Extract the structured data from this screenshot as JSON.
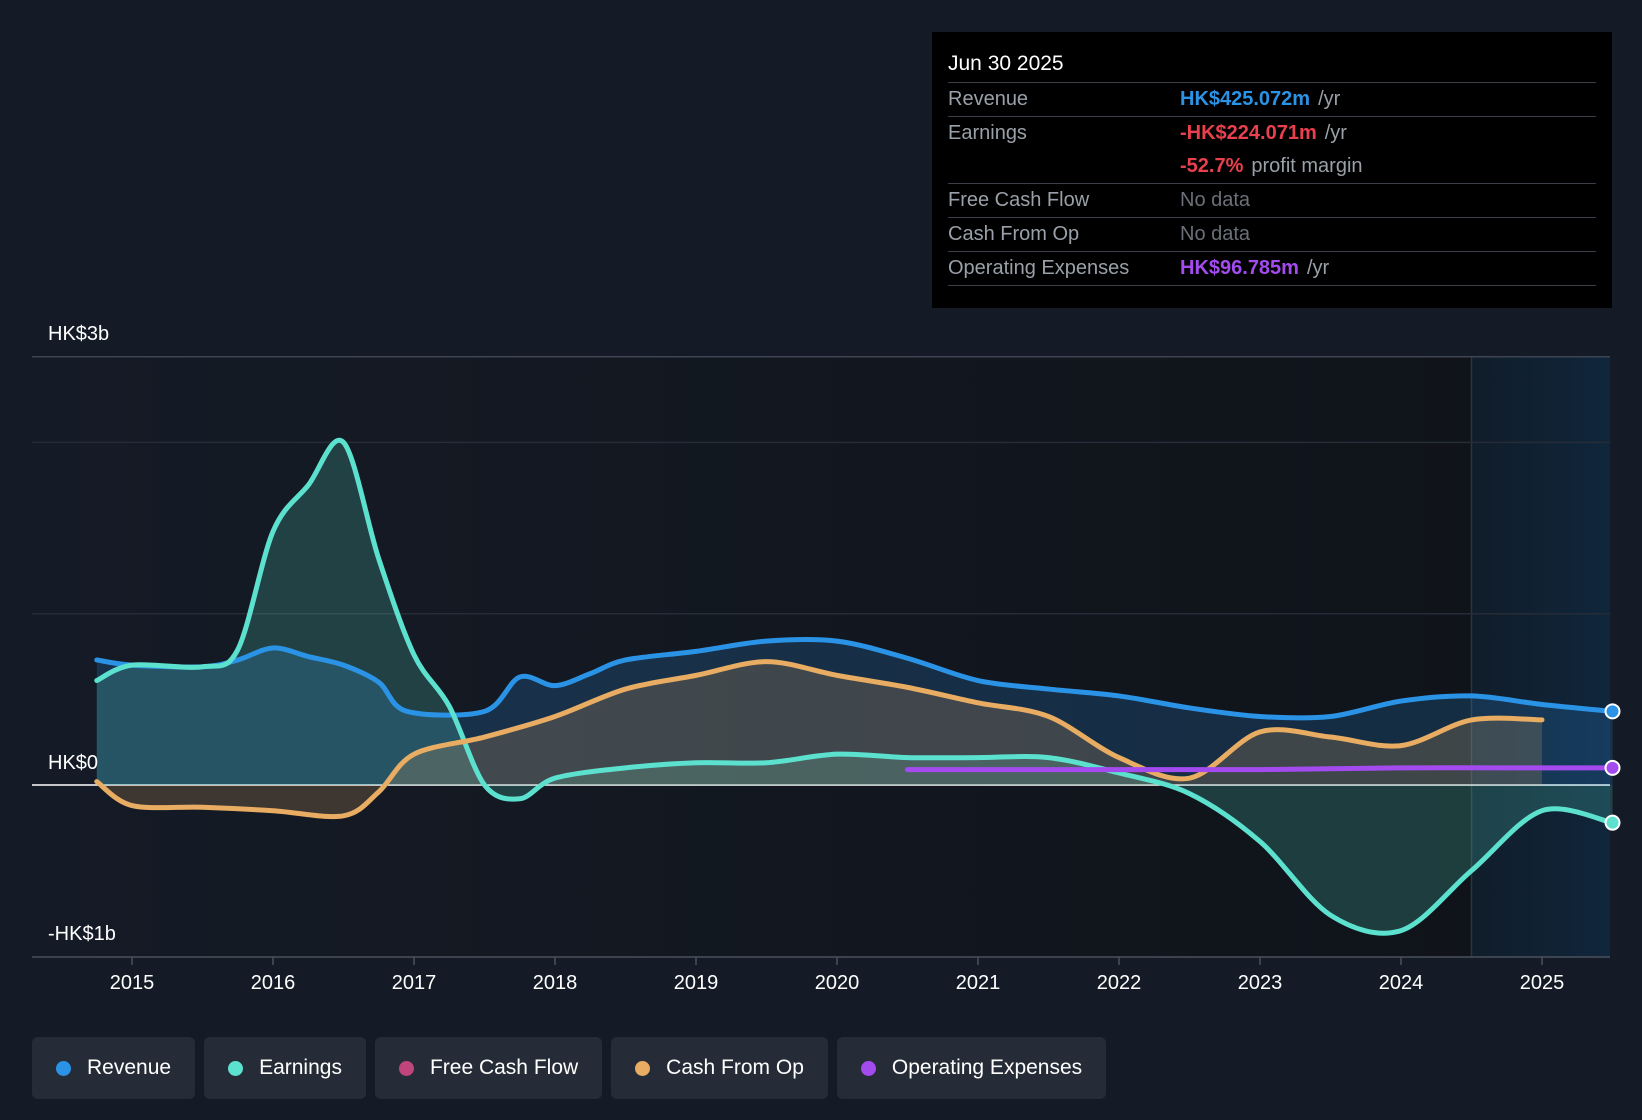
{
  "tooltip": {
    "date": "Jun 30 2025",
    "rows": [
      {
        "label": "Revenue",
        "value": "HK$425.072m",
        "unit": "/yr",
        "color": "#2b93e6"
      },
      {
        "label": "Earnings",
        "value": "-HK$224.071m",
        "unit": "/yr",
        "color": "#e8404c"
      },
      {
        "label": "",
        "value": "-52.7%",
        "unit": "profit margin",
        "color": "#e8404c"
      },
      {
        "label": "Free Cash Flow",
        "value": "No data",
        "unit": "",
        "color": "#6b7078"
      },
      {
        "label": "Cash From Op",
        "value": "No data",
        "unit": "",
        "color": "#6b7078"
      },
      {
        "label": "Operating Expenses",
        "value": "HK$96.785m",
        "unit": "/yr",
        "color": "#a44bf0"
      }
    ]
  },
  "legend": [
    {
      "label": "Revenue",
      "color": "#2b93e6"
    },
    {
      "label": "Earnings",
      "color": "#5ce1cf"
    },
    {
      "label": "Free Cash Flow",
      "color": "#c0457c"
    },
    {
      "label": "Cash From Op",
      "color": "#e8ac62"
    },
    {
      "label": "Operating Expenses",
      "color": "#a44bf0"
    }
  ],
  "chart_data": {
    "type": "line",
    "y_axis_labels": [
      "HK$3b",
      "HK$0",
      "-HK$1b"
    ],
    "x_ticks": [
      "2015",
      "2016",
      "2017",
      "2018",
      "2019",
      "2020",
      "2021",
      "2022",
      "2023",
      "2024",
      "2025"
    ],
    "ylim": [
      -1.0,
      2.5
    ],
    "y_unit": "HK$ billions",
    "forecast_start": 2024.5,
    "grid": true,
    "series": [
      {
        "name": "Revenue",
        "color": "#2b93e6",
        "fill": true,
        "points": [
          [
            2014.75,
            0.73
          ],
          [
            2015.0,
            0.7
          ],
          [
            2015.5,
            0.69
          ],
          [
            2015.75,
            0.73
          ],
          [
            2016.0,
            0.8
          ],
          [
            2016.25,
            0.75
          ],
          [
            2016.5,
            0.7
          ],
          [
            2016.75,
            0.6
          ],
          [
            2016.95,
            0.43
          ],
          [
            2017.5,
            0.43
          ],
          [
            2017.75,
            0.63
          ],
          [
            2018.0,
            0.58
          ],
          [
            2018.25,
            0.65
          ],
          [
            2018.5,
            0.73
          ],
          [
            2019.0,
            0.78
          ],
          [
            2019.5,
            0.84
          ],
          [
            2020.0,
            0.84
          ],
          [
            2020.5,
            0.74
          ],
          [
            2021.0,
            0.61
          ],
          [
            2021.5,
            0.56
          ],
          [
            2022.0,
            0.52
          ],
          [
            2022.5,
            0.45
          ],
          [
            2023.0,
            0.4
          ],
          [
            2023.5,
            0.4
          ],
          [
            2024.0,
            0.49
          ],
          [
            2024.5,
            0.52
          ],
          [
            2025.0,
            0.47
          ],
          [
            2025.5,
            0.43
          ]
        ]
      },
      {
        "name": "Earnings",
        "color": "#5ce1cf",
        "fill": true,
        "points": [
          [
            2014.75,
            0.61
          ],
          [
            2015.0,
            0.7
          ],
          [
            2015.5,
            0.69
          ],
          [
            2015.75,
            0.79
          ],
          [
            2016.0,
            1.48
          ],
          [
            2016.25,
            1.75
          ],
          [
            2016.5,
            2.0
          ],
          [
            2016.75,
            1.32
          ],
          [
            2017.0,
            0.76
          ],
          [
            2017.25,
            0.46
          ],
          [
            2017.5,
            0.0
          ],
          [
            2017.75,
            -0.08
          ],
          [
            2018.0,
            0.04
          ],
          [
            2018.5,
            0.1
          ],
          [
            2019.0,
            0.13
          ],
          [
            2019.5,
            0.13
          ],
          [
            2020.0,
            0.18
          ],
          [
            2020.5,
            0.16
          ],
          [
            2021.0,
            0.16
          ],
          [
            2021.5,
            0.16
          ],
          [
            2022.0,
            0.07
          ],
          [
            2022.5,
            -0.05
          ],
          [
            2023.0,
            -0.33
          ],
          [
            2023.5,
            -0.76
          ],
          [
            2024.0,
            -0.85
          ],
          [
            2024.5,
            -0.5
          ],
          [
            2025.0,
            -0.15
          ],
          [
            2025.5,
            -0.22
          ]
        ]
      },
      {
        "name": "Cash From Op",
        "color": "#e8ac62",
        "fill": true,
        "points": [
          [
            2014.75,
            0.02
          ],
          [
            2015.0,
            -0.12
          ],
          [
            2015.5,
            -0.13
          ],
          [
            2016.0,
            -0.15
          ],
          [
            2016.5,
            -0.18
          ],
          [
            2016.75,
            -0.04
          ],
          [
            2017.0,
            0.18
          ],
          [
            2017.5,
            0.28
          ],
          [
            2018.0,
            0.4
          ],
          [
            2018.5,
            0.56
          ],
          [
            2019.0,
            0.64
          ],
          [
            2019.5,
            0.72
          ],
          [
            2020.0,
            0.64
          ],
          [
            2020.5,
            0.57
          ],
          [
            2021.0,
            0.48
          ],
          [
            2021.5,
            0.4
          ],
          [
            2022.0,
            0.16
          ],
          [
            2022.5,
            0.04
          ],
          [
            2023.0,
            0.31
          ],
          [
            2023.5,
            0.28
          ],
          [
            2024.0,
            0.23
          ],
          [
            2024.5,
            0.38
          ],
          [
            2025.0,
            0.38
          ]
        ]
      },
      {
        "name": "Operating Expenses",
        "color": "#a44bf0",
        "fill": false,
        "points": [
          [
            2020.5,
            0.09
          ],
          [
            2021.0,
            0.09
          ],
          [
            2022.0,
            0.09
          ],
          [
            2023.0,
            0.09
          ],
          [
            2024.0,
            0.1
          ],
          [
            2025.0,
            0.1
          ],
          [
            2025.5,
            0.1
          ]
        ]
      }
    ]
  }
}
